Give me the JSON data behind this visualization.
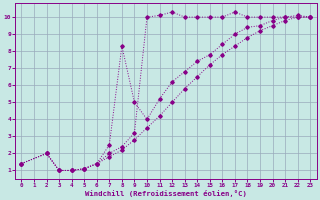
{
  "xlabel": "Windchill (Refroidissement éolien,°C)",
  "xlim": [
    -0.5,
    23.5
  ],
  "ylim": [
    0.5,
    10.8
  ],
  "xticks": [
    0,
    1,
    2,
    3,
    4,
    5,
    6,
    7,
    8,
    9,
    10,
    11,
    12,
    13,
    14,
    15,
    16,
    17,
    18,
    19,
    20,
    21,
    22,
    23
  ],
  "yticks": [
    1,
    2,
    3,
    4,
    5,
    6,
    7,
    8,
    9,
    10
  ],
  "bg_color": "#c8e8e4",
  "line_color": "#880088",
  "grid_color": "#99aabb",
  "curve1_x": [
    0,
    2,
    3,
    4,
    5,
    6,
    7,
    8,
    9,
    10,
    11,
    12,
    13,
    14,
    15,
    16,
    17,
    18,
    19,
    20,
    21,
    22,
    23
  ],
  "curve1_y": [
    1.4,
    2.0,
    1.0,
    1.0,
    1.1,
    1.4,
    2.0,
    2.4,
    3.2,
    10.0,
    10.1,
    10.3,
    10.0,
    10.0,
    10.0,
    10.0,
    10.3,
    10.0,
    10.0,
    10.0,
    10.0,
    10.0,
    10.0
  ],
  "curve2_x": [
    0,
    2,
    3,
    4,
    5,
    6,
    7,
    8,
    9,
    10,
    11,
    12,
    13,
    14,
    15,
    16,
    17,
    18,
    19,
    20,
    21,
    22,
    23
  ],
  "curve2_y": [
    1.4,
    2.0,
    1.0,
    1.0,
    1.1,
    1.4,
    2.5,
    8.3,
    5.0,
    4.0,
    5.2,
    6.2,
    6.8,
    7.4,
    7.8,
    8.4,
    9.0,
    9.4,
    9.5,
    9.8,
    10.0,
    10.1,
    10.0
  ],
  "curve3_x": [
    0,
    2,
    3,
    4,
    5,
    6,
    7,
    8,
    9,
    10,
    11,
    12,
    13,
    14,
    15,
    16,
    17,
    18,
    19,
    20,
    21,
    22,
    23
  ],
  "curve3_y": [
    1.4,
    2.0,
    1.0,
    1.0,
    1.1,
    1.4,
    1.8,
    2.2,
    2.8,
    3.5,
    4.2,
    5.0,
    5.8,
    6.5,
    7.2,
    7.8,
    8.3,
    8.8,
    9.2,
    9.5,
    9.8,
    10.0,
    10.0
  ]
}
